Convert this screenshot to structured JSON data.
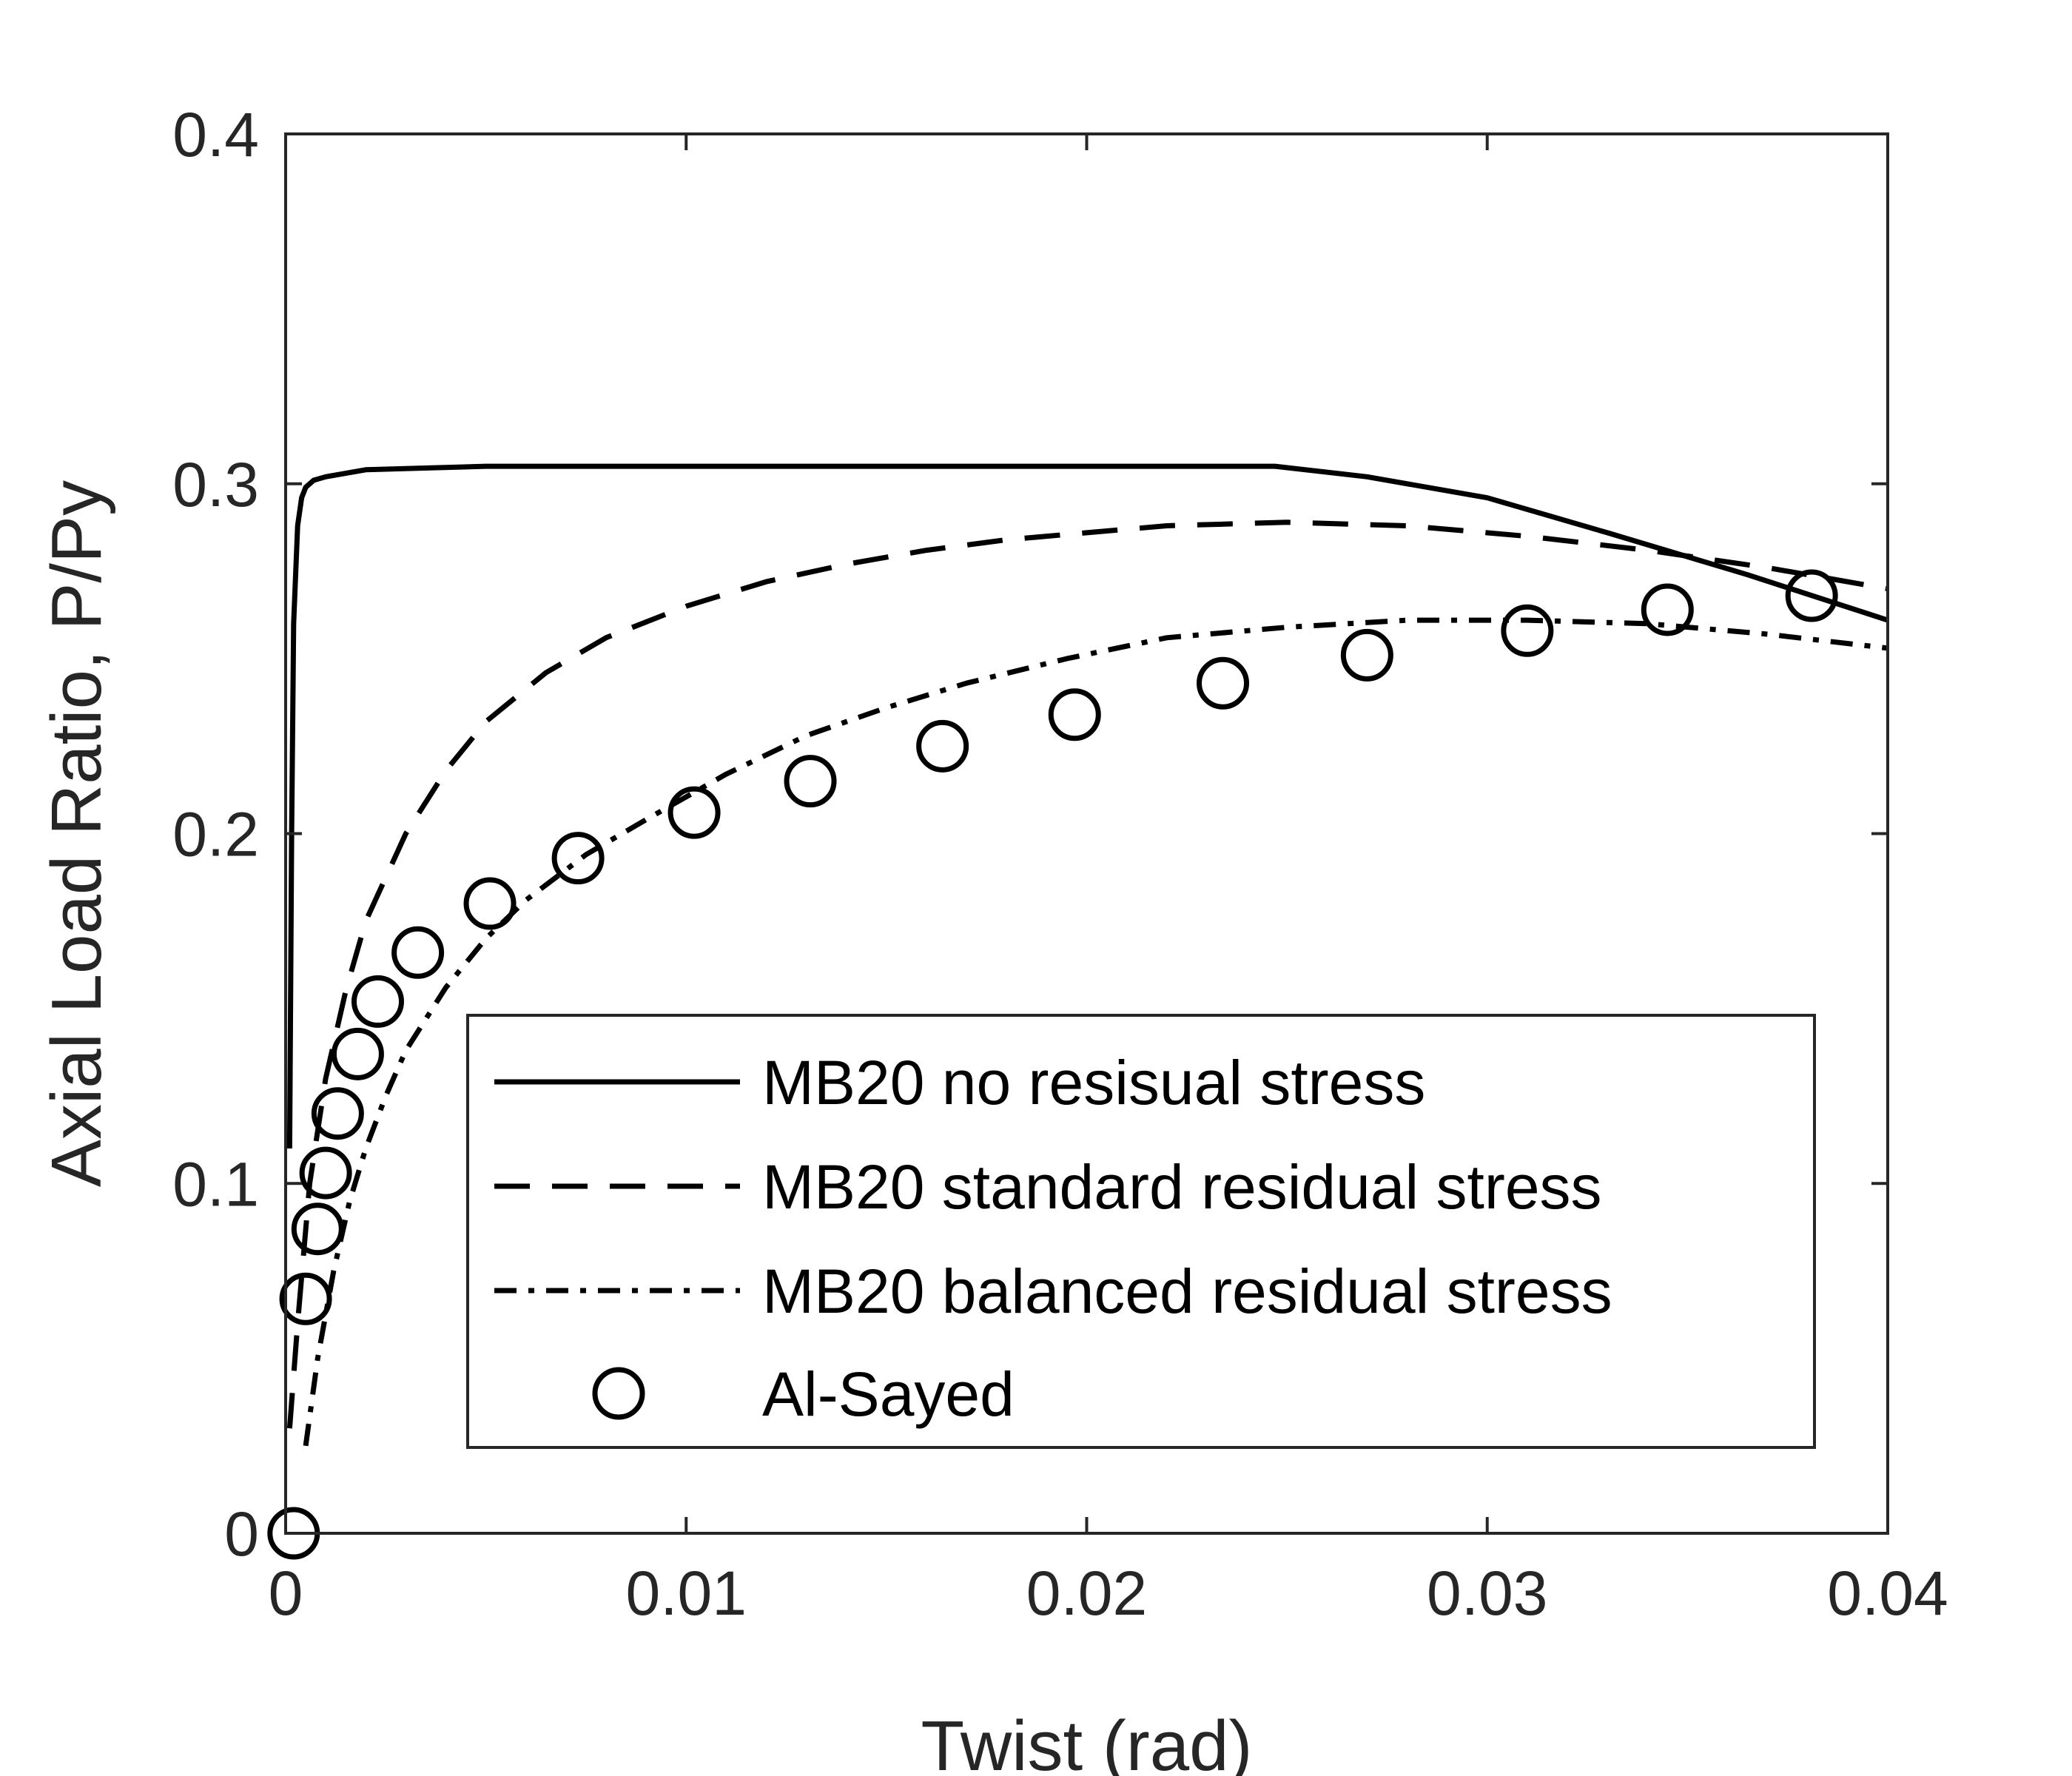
{
  "chart_data": {
    "type": "line",
    "xlabel": "Twist (rad)",
    "ylabel": "Axial Load Ratio, P/Py",
    "xlim": [
      0,
      0.04
    ],
    "ylim": [
      0,
      0.4
    ],
    "x_ticks": [
      0,
      0.01,
      0.02,
      0.03,
      0.04
    ],
    "x_tick_labels": [
      "0",
      "0.01",
      "0.02",
      "0.03",
      "0.04"
    ],
    "y_ticks": [
      0,
      0.1,
      0.2,
      0.3,
      0.4
    ],
    "y_tick_labels": [
      "0",
      "0.1",
      "0.2",
      "0.3",
      "0.4"
    ],
    "grid": false,
    "legend_position": "lower-right",
    "series": [
      {
        "name": "MB20 no resisual stress",
        "style": "solid",
        "color": "#000000",
        "x": [
          0.0001,
          0.00015,
          0.0002,
          0.0003,
          0.0004,
          0.0005,
          0.0007,
          0.001,
          0.002,
          0.005,
          0.01,
          0.02,
          0.0247,
          0.027,
          0.03,
          0.033,
          0.0365,
          0.04
        ],
        "y": [
          0.11,
          0.2,
          0.26,
          0.288,
          0.296,
          0.299,
          0.301,
          0.302,
          0.304,
          0.305,
          0.305,
          0.305,
          0.305,
          0.302,
          0.296,
          0.286,
          0.274,
          0.261
        ]
      },
      {
        "name": "MB20 standard residual stress",
        "style": "dashed",
        "color": "#000000",
        "x": [
          0.0001,
          0.0003,
          0.0006,
          0.001,
          0.0015,
          0.002,
          0.003,
          0.004,
          0.005,
          0.0065,
          0.008,
          0.01,
          0.012,
          0.014,
          0.016,
          0.018,
          0.02,
          0.022,
          0.025,
          0.028,
          0.031,
          0.034,
          0.037,
          0.04
        ],
        "y": [
          0.03,
          0.06,
          0.1,
          0.13,
          0.155,
          0.175,
          0.2,
          0.218,
          0.232,
          0.246,
          0.256,
          0.265,
          0.272,
          0.277,
          0.281,
          0.284,
          0.286,
          0.288,
          0.289,
          0.288,
          0.285,
          0.281,
          0.276,
          0.27
        ]
      },
      {
        "name": "MB20 balanced residual stress",
        "style": "dashdot",
        "color": "#000000",
        "x": [
          0.0005,
          0.0008,
          0.0012,
          0.0016,
          0.002,
          0.0025,
          0.003,
          0.004,
          0.005,
          0.006,
          0.0075,
          0.009,
          0.011,
          0.013,
          0.015,
          0.017,
          0.0195,
          0.022,
          0.025,
          0.028,
          0.031,
          0.034,
          0.037,
          0.04
        ],
        "y": [
          0.025,
          0.05,
          0.075,
          0.095,
          0.11,
          0.125,
          0.138,
          0.156,
          0.17,
          0.181,
          0.194,
          0.204,
          0.217,
          0.228,
          0.236,
          0.243,
          0.25,
          0.256,
          0.259,
          0.261,
          0.261,
          0.26,
          0.257,
          0.253
        ]
      },
      {
        "name": "Al-Sayed",
        "style": "markers-circle",
        "color": "#000000",
        "x": [
          0.0002,
          0.0005,
          0.0008,
          0.001,
          0.0013,
          0.0018,
          0.0023,
          0.0033,
          0.0051,
          0.0073,
          0.0102,
          0.0131,
          0.0164,
          0.0197,
          0.0234,
          0.027,
          0.031,
          0.0345,
          0.0381
        ],
        "y": [
          0.0,
          0.067,
          0.087,
          0.103,
          0.12,
          0.137,
          0.152,
          0.166,
          0.18,
          0.193,
          0.206,
          0.215,
          0.225,
          0.234,
          0.243,
          0.251,
          0.258,
          0.264,
          0.268
        ]
      }
    ]
  }
}
